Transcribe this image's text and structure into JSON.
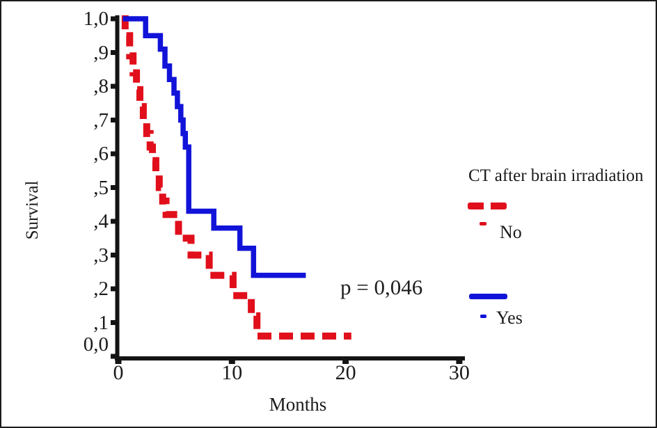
{
  "chart_data": {
    "type": "line",
    "subtype": "kaplan-meier-step",
    "title": "",
    "xlabel": "Months",
    "ylabel": "Survival",
    "xlim": [
      0,
      30.5
    ],
    "ylim": [
      0,
      1.0
    ],
    "grid": false,
    "x_ticks": {
      "values": [
        0,
        10,
        20,
        30
      ],
      "labels": [
        "0",
        "10",
        "20",
        "30"
      ]
    },
    "y_ticks": {
      "values": [
        1.0,
        0.9,
        0.8,
        0.7,
        0.6,
        0.5,
        0.4,
        0.3,
        0.2,
        0.1,
        0.0
      ],
      "labels": [
        "1,0",
        ",9",
        ",8",
        ",7",
        ",6",
        ",5",
        ",4",
        ",3",
        ",2",
        ",1",
        "0,0"
      ]
    },
    "annotation": {
      "text": "p = 0,046"
    },
    "legend": {
      "title": "CT after brain irradiation",
      "position": "right"
    },
    "series": [
      {
        "name": "No",
        "color": "#e00f1b",
        "line_style": "dashed",
        "steps": [
          [
            0.3,
            1.0
          ],
          [
            0.6,
            0.95
          ],
          [
            1.0,
            0.89
          ],
          [
            1.3,
            0.84
          ],
          [
            1.6,
            0.79
          ],
          [
            1.9,
            0.74
          ],
          [
            2.2,
            0.7
          ],
          [
            2.5,
            0.66
          ],
          [
            2.8,
            0.62
          ],
          [
            3.0,
            0.58
          ],
          [
            3.3,
            0.54
          ],
          [
            3.6,
            0.5
          ],
          [
            3.9,
            0.46
          ],
          [
            4.2,
            0.42
          ],
          [
            5.3,
            0.35
          ],
          [
            6.4,
            0.3
          ],
          [
            8.0,
            0.24
          ],
          [
            10.1,
            0.18
          ],
          [
            11.7,
            0.12
          ],
          [
            12.2,
            0.06
          ]
        ],
        "end_x": 20.5
      },
      {
        "name": "Yes",
        "color": "#1113d9",
        "line_style": "solid",
        "steps": [
          [
            0.4,
            1.0
          ],
          [
            2.4,
            0.95
          ],
          [
            3.7,
            0.91
          ],
          [
            4.1,
            0.86
          ],
          [
            4.5,
            0.82
          ],
          [
            4.9,
            0.78
          ],
          [
            5.2,
            0.74
          ],
          [
            5.5,
            0.7
          ],
          [
            5.7,
            0.66
          ],
          [
            5.9,
            0.62
          ],
          [
            6.2,
            0.43
          ],
          [
            8.4,
            0.38
          ],
          [
            10.7,
            0.32
          ],
          [
            11.9,
            0.24
          ]
        ],
        "end_x": 16.5
      }
    ]
  }
}
